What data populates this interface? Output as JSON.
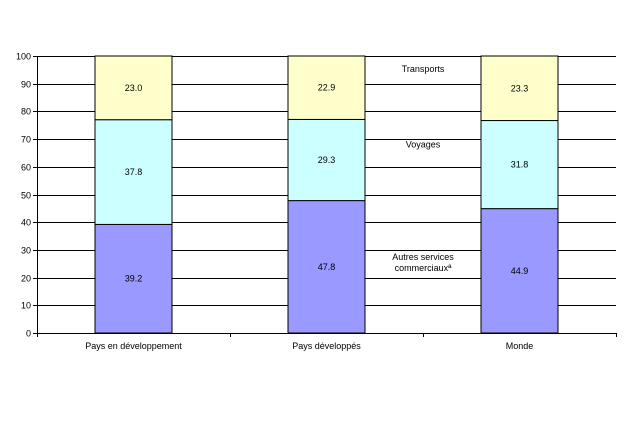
{
  "chart_data": {
    "type": "bar",
    "stacked": true,
    "categories": [
      "Pays en développement",
      "Pays développés",
      "Monde"
    ],
    "series": [
      {
        "name": "Autres services commerciaux",
        "name_lines": [
          "Autres services",
          "commerciauxª"
        ],
        "color": "#9999ff",
        "values": [
          39.2,
          47.8,
          44.9
        ],
        "labels": [
          "39.2",
          "47.8",
          "44.9"
        ]
      },
      {
        "name": "Voyages",
        "name_lines": [
          "Voyages"
        ],
        "color": "#ccffff",
        "values": [
          37.8,
          29.3,
          31.8
        ],
        "labels": [
          "37.8",
          "29.3",
          "31.8"
        ]
      },
      {
        "name": "Transports",
        "name_lines": [
          "Transports"
        ],
        "color": "#ffffcc",
        "values": [
          23.0,
          22.9,
          23.3
        ],
        "labels": [
          "23.0",
          "22.9",
          "23.3"
        ]
      }
    ],
    "ylim": [
      0,
      100
    ],
    "yticks": [
      "0",
      "10",
      "20",
      "30",
      "40",
      "50",
      "60",
      "70",
      "80",
      "90",
      "100"
    ],
    "grid": true,
    "legend": "inline between second and third bars"
  }
}
